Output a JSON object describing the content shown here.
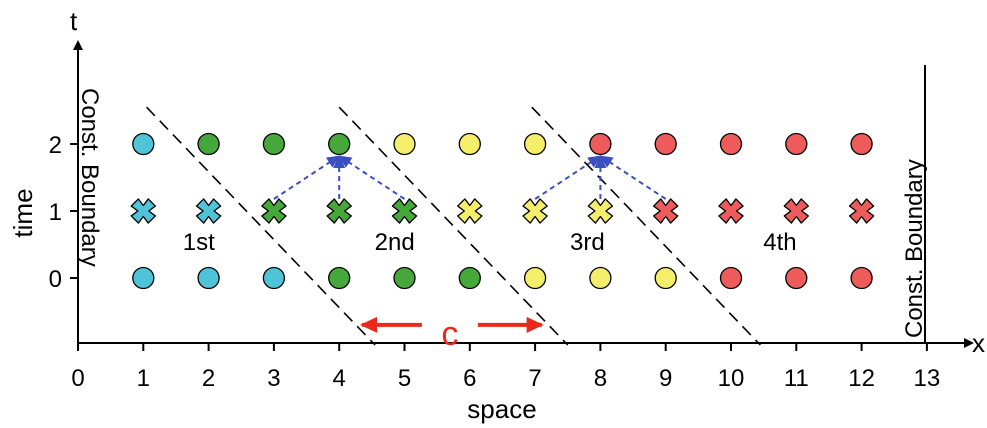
{
  "axes": {
    "x_label": "space",
    "y_label": "time",
    "x_axis_letter": "x",
    "t_axis_letter": "t",
    "x_ticks": [
      "0",
      "1",
      "2",
      "3",
      "4",
      "5",
      "6",
      "7",
      "8",
      "9",
      "10",
      "11",
      "12",
      "13"
    ],
    "t_ticks": [
      "0",
      "1",
      "2"
    ]
  },
  "boundaries": {
    "left": "Const. Boundary",
    "right": "Const. Boundary"
  },
  "regions": [
    {
      "label": "1st",
      "x": 1.85,
      "t": 0.55
    },
    {
      "label": "2nd",
      "x": 4.85,
      "t": 0.55
    },
    {
      "label": "3rd",
      "x": 7.8,
      "t": 0.55
    },
    {
      "label": "4th",
      "x": 10.75,
      "t": 0.55
    }
  ],
  "speed_label": "c",
  "colors": {
    "cyan": "#4fc3d8",
    "green": "#46a83a",
    "yellow": "#f4ee6a",
    "red": "#ee5b5b",
    "arrow_blue": "#3a4fc0",
    "arrow_red": "#e8291c"
  },
  "points": {
    "t0": [
      {
        "x": 1,
        "color": "cyan",
        "marker": "circle"
      },
      {
        "x": 2,
        "color": "cyan",
        "marker": "circle"
      },
      {
        "x": 3,
        "color": "cyan",
        "marker": "circle"
      },
      {
        "x": 4,
        "color": "green",
        "marker": "circle"
      },
      {
        "x": 5,
        "color": "green",
        "marker": "circle"
      },
      {
        "x": 6,
        "color": "green",
        "marker": "circle"
      },
      {
        "x": 7,
        "color": "yellow",
        "marker": "circle"
      },
      {
        "x": 8,
        "color": "yellow",
        "marker": "circle"
      },
      {
        "x": 9,
        "color": "yellow",
        "marker": "circle"
      },
      {
        "x": 10,
        "color": "red",
        "marker": "circle"
      },
      {
        "x": 11,
        "color": "red",
        "marker": "circle"
      },
      {
        "x": 12,
        "color": "red",
        "marker": "circle"
      }
    ],
    "t1": [
      {
        "x": 1,
        "color": "cyan",
        "marker": "cross"
      },
      {
        "x": 2,
        "color": "cyan",
        "marker": "cross"
      },
      {
        "x": 3,
        "color": "green",
        "marker": "cross"
      },
      {
        "x": 4,
        "color": "green",
        "marker": "cross"
      },
      {
        "x": 5,
        "color": "green",
        "marker": "cross"
      },
      {
        "x": 6,
        "color": "yellow",
        "marker": "cross"
      },
      {
        "x": 7,
        "color": "yellow",
        "marker": "cross"
      },
      {
        "x": 8,
        "color": "yellow",
        "marker": "cross"
      },
      {
        "x": 9,
        "color": "red",
        "marker": "cross"
      },
      {
        "x": 10,
        "color": "red",
        "marker": "cross"
      },
      {
        "x": 11,
        "color": "red",
        "marker": "cross"
      },
      {
        "x": 12,
        "color": "red",
        "marker": "cross"
      }
    ],
    "t2": [
      {
        "x": 1,
        "color": "cyan",
        "marker": "circle"
      },
      {
        "x": 2,
        "color": "green",
        "marker": "circle"
      },
      {
        "x": 3,
        "color": "green",
        "marker": "circle"
      },
      {
        "x": 4,
        "color": "green",
        "marker": "circle"
      },
      {
        "x": 5,
        "color": "yellow",
        "marker": "circle"
      },
      {
        "x": 6,
        "color": "yellow",
        "marker": "circle"
      },
      {
        "x": 7,
        "color": "yellow",
        "marker": "circle"
      },
      {
        "x": 8,
        "color": "red",
        "marker": "circle"
      },
      {
        "x": 9,
        "color": "red",
        "marker": "circle"
      },
      {
        "x": 10,
        "color": "red",
        "marker": "circle"
      },
      {
        "x": 11,
        "color": "red",
        "marker": "circle"
      },
      {
        "x": 12,
        "color": "red",
        "marker": "circle"
      }
    ]
  },
  "dashed_lines": [
    {
      "x_top": 1.05,
      "t_top": 2.55,
      "x_bottom": 4.55,
      "t_bottom": -1.0
    },
    {
      "x_top": 4.0,
      "t_top": 2.55,
      "x_bottom": 7.5,
      "t_bottom": -1.0
    },
    {
      "x_top": 6.95,
      "t_top": 2.55,
      "x_bottom": 10.45,
      "t_bottom": -1.0
    }
  ],
  "dependency_arrows": [
    {
      "from": [
        3,
        1
      ],
      "to": [
        4,
        2
      ]
    },
    {
      "from": [
        4,
        1
      ],
      "to": [
        4,
        2
      ]
    },
    {
      "from": [
        5,
        1
      ],
      "to": [
        4,
        2
      ]
    },
    {
      "from": [
        7,
        1
      ],
      "to": [
        8,
        2
      ]
    },
    {
      "from": [
        8,
        1
      ],
      "to": [
        8,
        2
      ]
    },
    {
      "from": [
        9,
        1
      ],
      "to": [
        8,
        2
      ]
    }
  ],
  "speed_arrow": {
    "x_left": 4.35,
    "x_right": 7.1,
    "t": -0.7
  }
}
